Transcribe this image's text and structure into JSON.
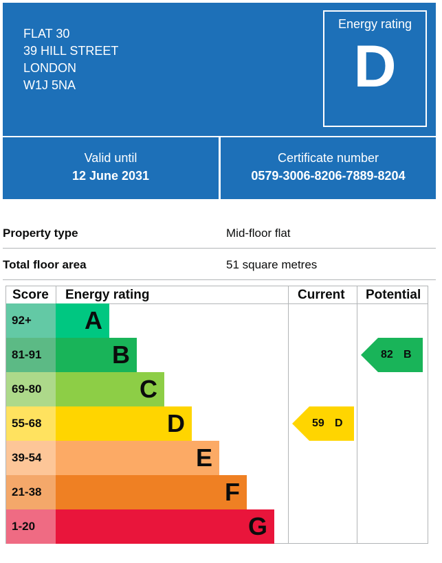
{
  "address": [
    "FLAT 30",
    "39 HILL STREET",
    "LONDON",
    "W1J 5NA"
  ],
  "rating_box": {
    "label": "Energy rating",
    "letter": "D"
  },
  "validity": {
    "label": "Valid until",
    "value": "12 June 2031"
  },
  "certificate": {
    "label": "Certificate number",
    "value": "0579-3006-8206-7889-8204"
  },
  "property": [
    {
      "key": "Property type",
      "value": "Mid-floor flat"
    },
    {
      "key": "Total floor area",
      "value": "51 square metres"
    }
  ],
  "chart_data": {
    "type": "table",
    "headers": {
      "score": "Score",
      "rating": "Energy rating",
      "current": "Current",
      "potential": "Potential"
    },
    "bands": [
      {
        "score": "92+",
        "letter": "A",
        "color": "#00c781",
        "score_bg": "#63c9a5"
      },
      {
        "score": "81-91",
        "letter": "B",
        "color": "#19b459",
        "score_bg": "#5cba85"
      },
      {
        "score": "69-80",
        "letter": "C",
        "color": "#8dce46",
        "score_bg": "#add98a"
      },
      {
        "score": "55-68",
        "letter": "D",
        "color": "#ffd500",
        "score_bg": "#ffe25f"
      },
      {
        "score": "39-54",
        "letter": "E",
        "color": "#fcaa65",
        "score_bg": "#fdc698"
      },
      {
        "score": "21-38",
        "letter": "F",
        "color": "#ef8023",
        "score_bg": "#f4a86a"
      },
      {
        "score": "1-20",
        "letter": "G",
        "color": "#e9153b",
        "score_bg": "#ef6b83"
      }
    ],
    "current": {
      "score": "59",
      "letter": "D",
      "color": "#ffd500"
    },
    "potential": {
      "score": "82",
      "letter": "B",
      "color": "#19b459"
    }
  }
}
